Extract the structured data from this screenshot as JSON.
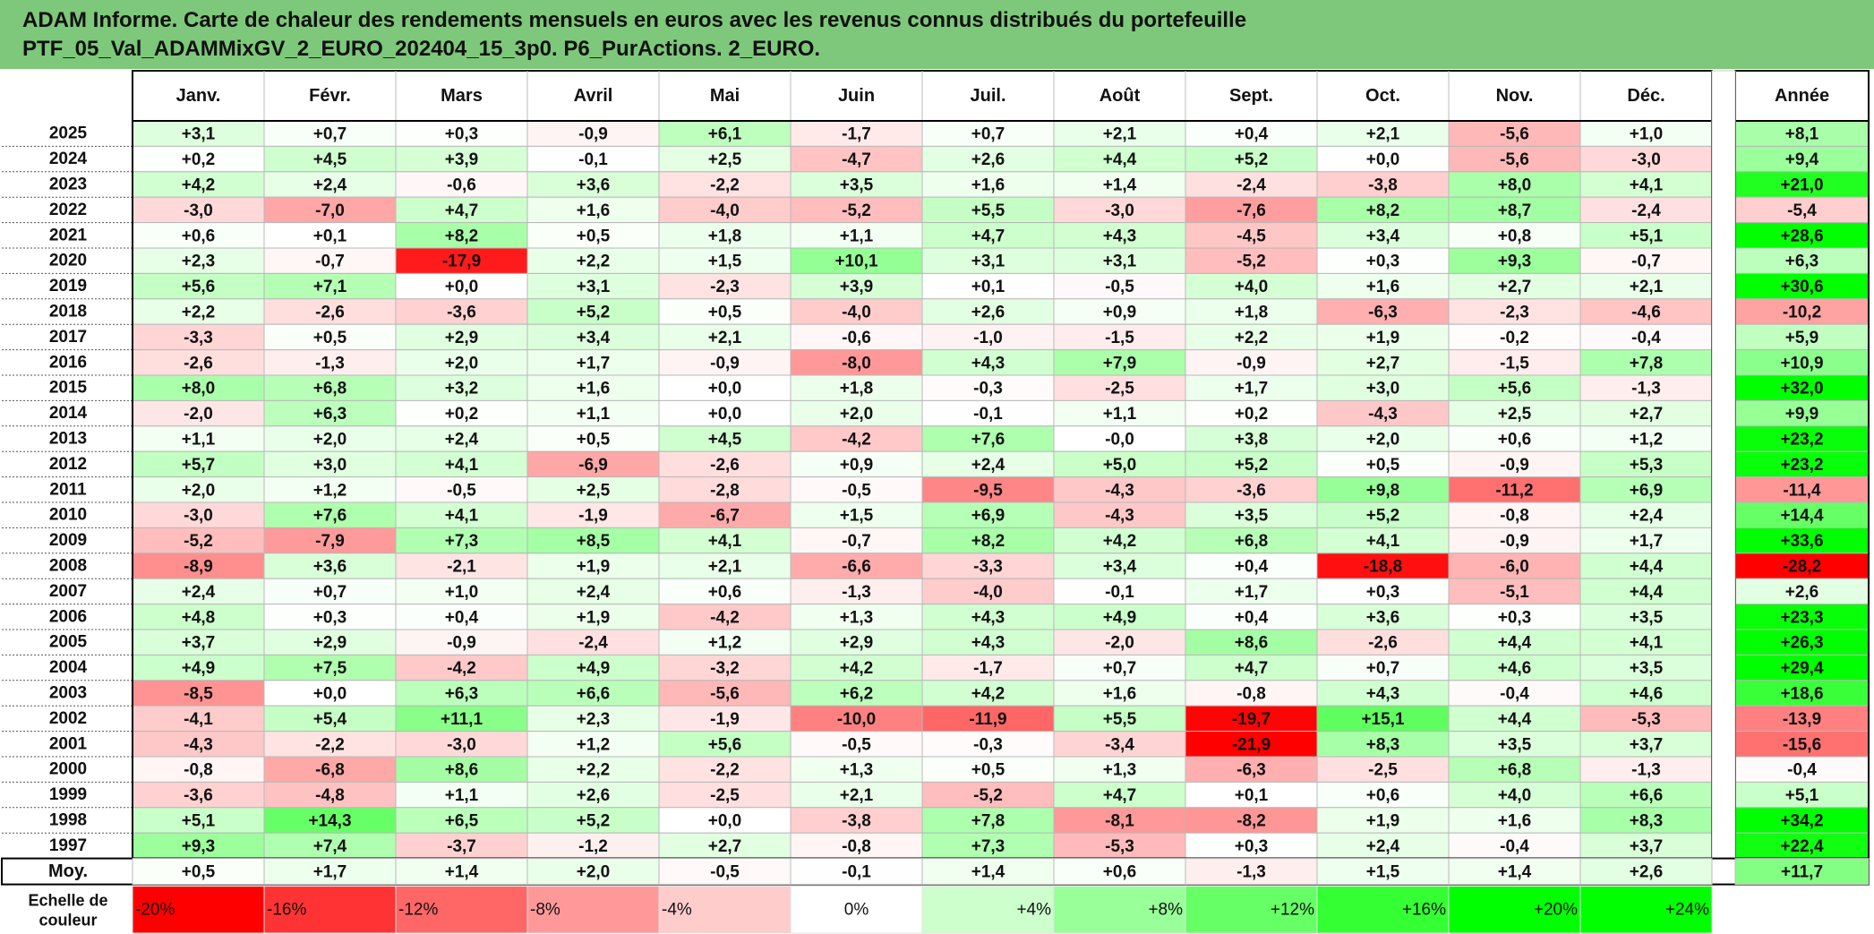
{
  "title": {
    "line1": "ADAM Informe. Carte de chaleur des rendements mensuels en euros avec les revenus connus distribués du portefeuille",
    "line2": "PTF_05_Val_ADAMMixGV_2_EURO_202404_15_3p0. P6_PurActions. 2_EURO."
  },
  "chart_data": {
    "type": "heatmap",
    "columns": [
      "Janv.",
      "Févr.",
      "Mars",
      "Avril",
      "Mai",
      "Juin",
      "Juil.",
      "Août",
      "Sept.",
      "Oct.",
      "Nov.",
      "Déc."
    ],
    "annual_header": "Année",
    "rows": [
      {
        "year": "2025",
        "months": [
          "+3,1",
          "+0,7",
          "+0,3",
          "-0,9",
          "+6,1",
          "-1,7",
          "+0,7",
          "+2,1",
          "+0,4",
          "+2,1",
          "-5,6",
          "+1,0"
        ],
        "annual": "+8,1"
      },
      {
        "year": "2024",
        "months": [
          "+0,2",
          "+4,5",
          "+3,9",
          "-0,1",
          "+2,5",
          "-4,7",
          "+2,6",
          "+4,4",
          "+5,2",
          "+0,0",
          "-5,6",
          "-3,0"
        ],
        "annual": "+9,4"
      },
      {
        "year": "2023",
        "months": [
          "+4,2",
          "+2,4",
          "-0,6",
          "+3,6",
          "-2,2",
          "+3,5",
          "+1,6",
          "+1,4",
          "-2,4",
          "-3,8",
          "+8,0",
          "+4,1"
        ],
        "annual": "+21,0"
      },
      {
        "year": "2022",
        "months": [
          "-3,0",
          "-7,0",
          "+4,7",
          "+1,6",
          "-4,0",
          "-5,2",
          "+5,5",
          "-3,0",
          "-7,6",
          "+8,2",
          "+8,7",
          "-2,4"
        ],
        "annual": "-5,4"
      },
      {
        "year": "2021",
        "months": [
          "+0,6",
          "+0,1",
          "+8,2",
          "+0,5",
          "+1,8",
          "+1,1",
          "+4,7",
          "+4,3",
          "-4,5",
          "+3,4",
          "+0,8",
          "+5,1"
        ],
        "annual": "+28,6"
      },
      {
        "year": "2020",
        "months": [
          "+2,3",
          "-0,7",
          "-17,9",
          "+2,2",
          "+1,5",
          "+10,1",
          "+3,1",
          "+3,1",
          "-5,2",
          "+0,3",
          "+9,3",
          "-0,7"
        ],
        "annual": "+6,3"
      },
      {
        "year": "2019",
        "months": [
          "+5,6",
          "+7,1",
          "+0,0",
          "+3,1",
          "-2,3",
          "+3,9",
          "+0,1",
          "-0,5",
          "+4,0",
          "+1,6",
          "+2,7",
          "+2,1"
        ],
        "annual": "+30,6"
      },
      {
        "year": "2018",
        "months": [
          "+2,2",
          "-2,6",
          "-3,6",
          "+5,2",
          "+0,5",
          "-4,0",
          "+2,6",
          "+0,9",
          "+1,8",
          "-6,3",
          "-2,3",
          "-4,6"
        ],
        "annual": "-10,2"
      },
      {
        "year": "2017",
        "months": [
          "-3,3",
          "+0,5",
          "+2,9",
          "+3,4",
          "+2,1",
          "-0,6",
          "-1,0",
          "-1,5",
          "+2,2",
          "+1,9",
          "-0,2",
          "-0,4"
        ],
        "annual": "+5,9"
      },
      {
        "year": "2016",
        "months": [
          "-2,6",
          "-1,3",
          "+2,0",
          "+1,7",
          "-0,9",
          "-8,0",
          "+4,3",
          "+7,9",
          "-0,9",
          "+2,7",
          "-1,5",
          "+7,8"
        ],
        "annual": "+10,9"
      },
      {
        "year": "2015",
        "months": [
          "+8,0",
          "+6,8",
          "+3,2",
          "+1,6",
          "+0,0",
          "+1,8",
          "-0,3",
          "-2,5",
          "+1,7",
          "+3,0",
          "+5,6",
          "-1,3"
        ],
        "annual": "+32,0"
      },
      {
        "year": "2014",
        "months": [
          "-2,0",
          "+6,3",
          "+0,2",
          "+1,1",
          "+0,0",
          "+2,0",
          "-0,1",
          "+1,1",
          "+0,2",
          "-4,3",
          "+2,5",
          "+2,7"
        ],
        "annual": "+9,9"
      },
      {
        "year": "2013",
        "months": [
          "+1,1",
          "+2,0",
          "+2,4",
          "+0,5",
          "+4,5",
          "-4,2",
          "+7,6",
          "-0,0",
          "+3,8",
          "+2,0",
          "+0,6",
          "+1,2"
        ],
        "annual": "+23,2"
      },
      {
        "year": "2012",
        "months": [
          "+5,7",
          "+3,0",
          "+4,1",
          "-6,9",
          "-2,6",
          "+0,9",
          "+2,4",
          "+5,0",
          "+5,2",
          "+0,5",
          "-0,9",
          "+5,3"
        ],
        "annual": "+23,2"
      },
      {
        "year": "2011",
        "months": [
          "+2,0",
          "+1,2",
          "-0,5",
          "+2,5",
          "-2,8",
          "-0,5",
          "-9,5",
          "-4,3",
          "-3,6",
          "+9,8",
          "-11,2",
          "+6,9"
        ],
        "annual": "-11,4"
      },
      {
        "year": "2010",
        "months": [
          "-3,0",
          "+7,6",
          "+4,1",
          "-1,9",
          "-6,7",
          "+1,5",
          "+6,9",
          "-4,3",
          "+3,5",
          "+5,2",
          "-0,8",
          "+2,4"
        ],
        "annual": "+14,4"
      },
      {
        "year": "2009",
        "months": [
          "-5,2",
          "-7,9",
          "+7,3",
          "+8,5",
          "+4,1",
          "-0,7",
          "+8,2",
          "+4,2",
          "+6,8",
          "+4,1",
          "-0,9",
          "+1,7"
        ],
        "annual": "+33,6"
      },
      {
        "year": "2008",
        "months": [
          "-8,9",
          "+3,6",
          "-2,1",
          "+1,9",
          "+2,1",
          "-6,6",
          "-3,3",
          "+3,4",
          "+0,4",
          "-18,8",
          "-6,0",
          "+4,4"
        ],
        "annual": "-28,2"
      },
      {
        "year": "2007",
        "months": [
          "+2,4",
          "+0,7",
          "+1,0",
          "+2,4",
          "+0,6",
          "-1,3",
          "-4,0",
          "-0,1",
          "+1,7",
          "+0,3",
          "-5,1",
          "+4,4"
        ],
        "annual": "+2,6"
      },
      {
        "year": "2006",
        "months": [
          "+4,8",
          "+0,3",
          "+0,4",
          "+1,9",
          "-4,2",
          "+1,3",
          "+4,3",
          "+4,9",
          "+0,4",
          "+3,6",
          "+0,3",
          "+3,5"
        ],
        "annual": "+23,3"
      },
      {
        "year": "2005",
        "months": [
          "+3,7",
          "+2,9",
          "-0,9",
          "-2,4",
          "+1,2",
          "+2,9",
          "+4,3",
          "-2,0",
          "+8,6",
          "-2,6",
          "+4,4",
          "+4,1"
        ],
        "annual": "+26,3"
      },
      {
        "year": "2004",
        "months": [
          "+4,9",
          "+7,5",
          "-4,2",
          "+4,9",
          "-3,2",
          "+4,2",
          "-1,7",
          "+0,7",
          "+4,7",
          "+0,7",
          "+4,6",
          "+3,5"
        ],
        "annual": "+29,4"
      },
      {
        "year": "2003",
        "months": [
          "-8,5",
          "+0,0",
          "+6,3",
          "+6,6",
          "-5,6",
          "+6,2",
          "+4,2",
          "+1,6",
          "-0,8",
          "+4,3",
          "-0,4",
          "+4,6"
        ],
        "annual": "+18,6"
      },
      {
        "year": "2002",
        "months": [
          "-4,1",
          "+5,4",
          "+11,1",
          "+2,3",
          "-1,9",
          "-10,0",
          "-11,9",
          "+5,5",
          "-19,7",
          "+15,1",
          "+4,4",
          "-5,3"
        ],
        "annual": "-13,9"
      },
      {
        "year": "2001",
        "months": [
          "-4,3",
          "-2,2",
          "-3,0",
          "+1,2",
          "+5,6",
          "-0,5",
          "-0,3",
          "-3,4",
          "-21,9",
          "+8,3",
          "+3,5",
          "+3,7"
        ],
        "annual": "-15,6"
      },
      {
        "year": "2000",
        "months": [
          "-0,8",
          "-6,8",
          "+8,6",
          "+2,2",
          "-2,2",
          "+1,3",
          "+0,5",
          "+1,3",
          "-6,3",
          "-2,5",
          "+6,8",
          "-1,3"
        ],
        "annual": "-0,4"
      },
      {
        "year": "1999",
        "months": [
          "-3,6",
          "-4,8",
          "+1,1",
          "+2,6",
          "-2,5",
          "+2,1",
          "-5,2",
          "+4,7",
          "+0,1",
          "+0,6",
          "+4,0",
          "+6,6"
        ],
        "annual": "+5,1"
      },
      {
        "year": "1998",
        "months": [
          "+5,1",
          "+14,3",
          "+6,5",
          "+5,2",
          "+0,0",
          "-3,8",
          "+7,8",
          "-8,1",
          "-8,2",
          "+1,9",
          "+1,6",
          "+8,3"
        ],
        "annual": "+34,2"
      },
      {
        "year": "1997",
        "months": [
          "+9,3",
          "+7,4",
          "-3,7",
          "-1,2",
          "+2,7",
          "-0,8",
          "+7,3",
          "-5,3",
          "+0,3",
          "+2,4",
          "-0,4",
          "+3,7"
        ],
        "annual": "+22,4"
      }
    ],
    "average": {
      "label": "Moy.",
      "months": [
        "+0,5",
        "+1,7",
        "+1,4",
        "+2,0",
        "-0,5",
        "-0,1",
        "+1,4",
        "+0,6",
        "-1,3",
        "+1,5",
        "+1,4",
        "+2,6"
      ],
      "annual": "+11,7"
    },
    "scale": {
      "label_line1": "Echelle de",
      "label_line2": "couleur",
      "steps": [
        {
          "label": "-20%",
          "color": "#ff0000"
        },
        {
          "label": "-16%",
          "color": "#ff3333"
        },
        {
          "label": "-12%",
          "color": "#ff6666"
        },
        {
          "label": "-8%",
          "color": "#ff9999"
        },
        {
          "label": "-4%",
          "color": "#ffcccc"
        },
        {
          "label": "0%",
          "color": "#ffffff"
        },
        {
          "label": "+4%",
          "color": "#ccffcc"
        },
        {
          "label": "+8%",
          "color": "#99ff99"
        },
        {
          "label": "+12%",
          "color": "#66ff66"
        },
        {
          "label": "+16%",
          "color": "#33ff33"
        },
        {
          "label": "+20%",
          "color": "#00ff00"
        },
        {
          "label": "+24%",
          "color": "#00ff00"
        }
      ]
    },
    "color_scale": {
      "negative_full": "#ff0000",
      "positive_full": "#00ff00",
      "neutral": "#ffffff",
      "monthly_saturation_negative": 20,
      "monthly_saturation_positive": 24,
      "annual_saturation_negative": 28,
      "annual_saturation_positive": 24
    }
  }
}
